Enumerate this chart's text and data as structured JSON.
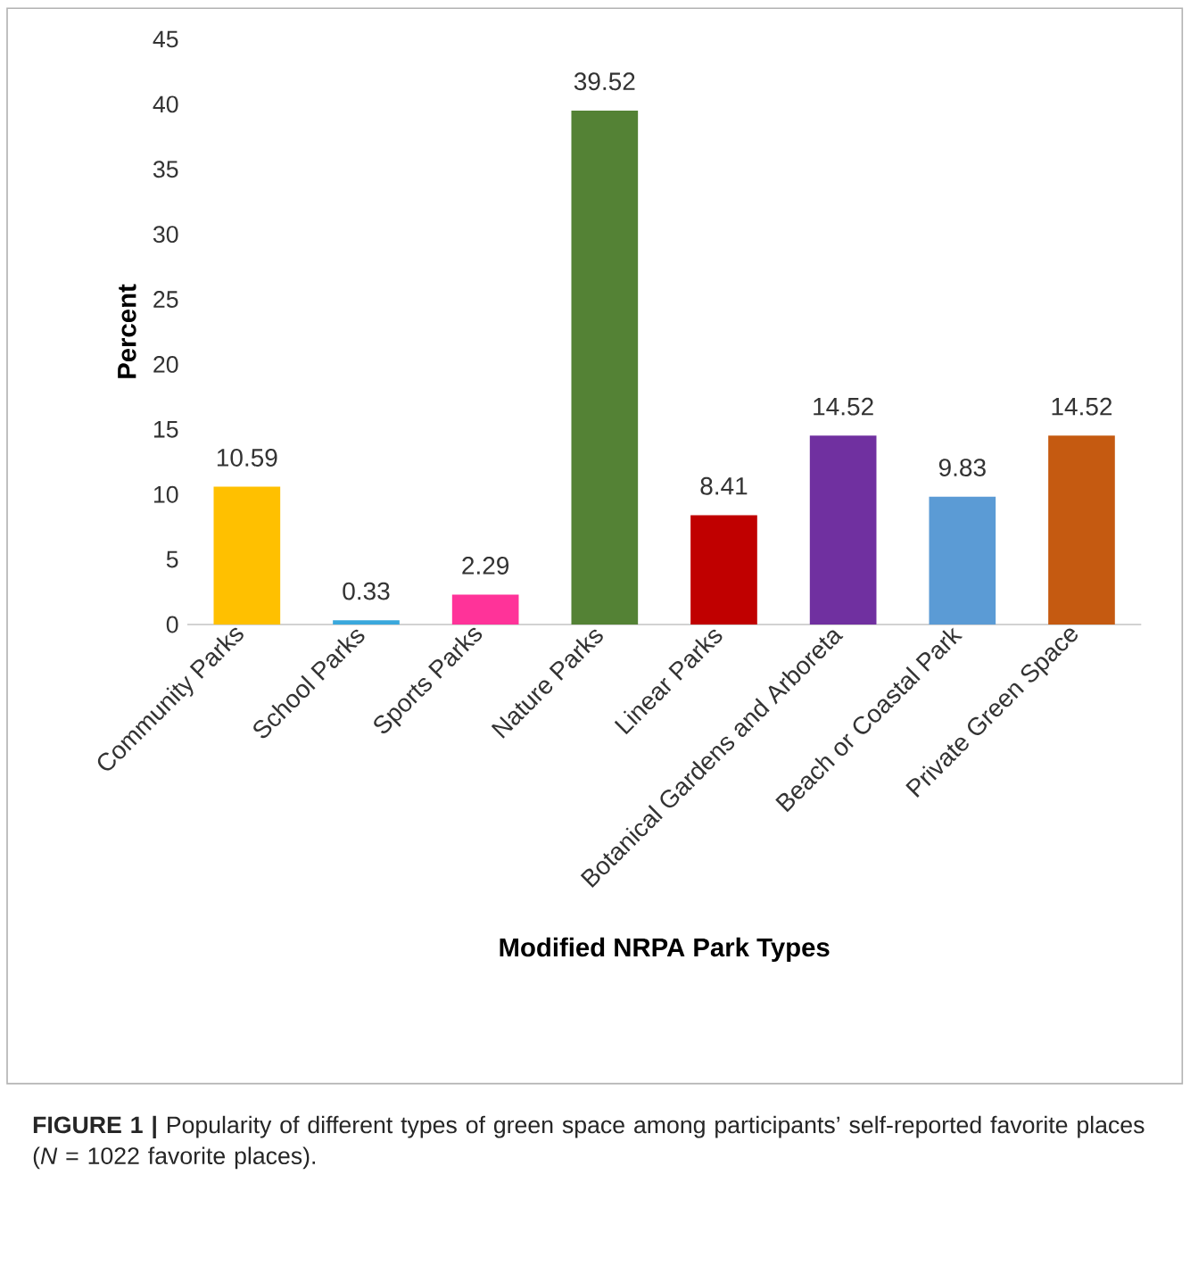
{
  "chart_data": {
    "type": "bar",
    "categories": [
      "Community Parks",
      "School Parks",
      "Sports Parks",
      "Nature Parks",
      "Linear Parks",
      "Botanical Gardens and Arboreta",
      "Beach or Coastal Park",
      "Private Green Space"
    ],
    "values": [
      10.59,
      0.33,
      2.29,
      39.52,
      8.41,
      14.52,
      9.83,
      14.52
    ],
    "colors": [
      "#ffc000",
      "#3aa8dc",
      "#ff3399",
      "#548235",
      "#c00000",
      "#7030a0",
      "#5b9bd5",
      "#c55a11"
    ],
    "ylabel": "Percent",
    "xlabel": "Modified NRPA Park Types",
    "ylim": [
      0,
      45
    ],
    "yticks": [
      0,
      5,
      10,
      15,
      20,
      25,
      30,
      35,
      40,
      45
    ],
    "data_labels": true,
    "annotations": [
      "**FIGURE 1 |** Popularity of different types of green space among participants’ self-reported favorite places (*N* = 1022 favorite places)."
    ]
  }
}
